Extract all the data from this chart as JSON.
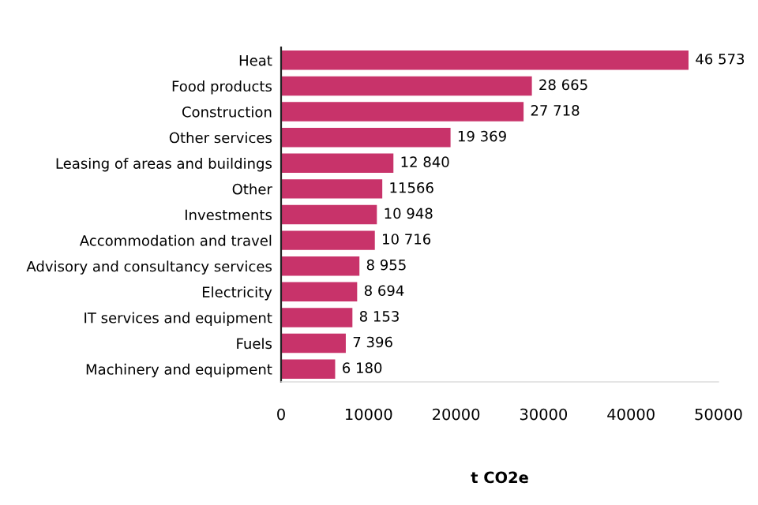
{
  "chart_data": {
    "type": "bar",
    "orientation": "horizontal",
    "xlabel": "t CO2e",
    "categories": [
      "Heat",
      "Food products",
      "Construction",
      "Other services",
      "Leasing of areas and buildings",
      "Other",
      "Investments",
      "Accommodation and travel",
      "Advisory and consultancy services",
      "Electricity",
      "IT services and equipment",
      "Fuels",
      "Machinery and equipment"
    ],
    "values": [
      46573,
      28665,
      27718,
      19369,
      12840,
      11566,
      10948,
      10716,
      8955,
      8694,
      8153,
      7396,
      6180
    ],
    "value_labels": [
      "46 573",
      "28 665",
      "27 718",
      "19 369",
      "12 840",
      "11566",
      "10 948",
      "10 716",
      "8 955",
      "8 694",
      "8 153",
      "7 396",
      "6 180"
    ],
    "color": "#c8336a",
    "xlim": [
      0,
      50000
    ],
    "xticks": [
      0,
      10000,
      20000,
      30000,
      40000,
      50000
    ],
    "grid": false,
    "legend": false
  }
}
